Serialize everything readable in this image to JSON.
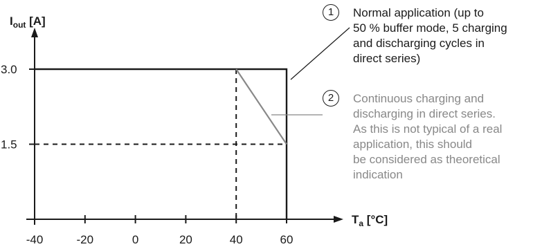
{
  "chart_data": {
    "type": "line",
    "title": "",
    "ylabel": {
      "base": "I",
      "sub": "out",
      "unit": " [A]"
    },
    "xlabel": {
      "base": "T",
      "sub": "a",
      "unit": " [°C]"
    },
    "xlim": [
      -40,
      60
    ],
    "ylim": [
      0,
      3.0
    ],
    "x_ticks": [
      -40,
      -20,
      0,
      20,
      40,
      60
    ],
    "x_tick_labels": [
      "-40",
      "-20",
      "0",
      "20",
      "40",
      "60"
    ],
    "y_ticks": [
      1.5,
      3.0
    ],
    "y_tick_labels": [
      "1.5",
      "3.0"
    ],
    "grid": false,
    "series": [
      {
        "name": "①",
        "color": "#1a1a1a",
        "style": "solid",
        "points": [
          [
            -40,
            3.0
          ],
          [
            60,
            3.0
          ],
          [
            60,
            0
          ]
        ]
      },
      {
        "name": "②",
        "color": "#888888",
        "style": "solid",
        "points": [
          [
            40,
            3.0
          ],
          [
            60,
            1.5
          ]
        ]
      }
    ],
    "guides": [
      {
        "style": "dashed",
        "points": [
          [
            40,
            3.0
          ],
          [
            40,
            0
          ]
        ]
      },
      {
        "style": "dashed",
        "points": [
          [
            -40,
            1.5
          ],
          [
            60,
            1.5
          ]
        ]
      }
    ],
    "annotations": [
      {
        "number": "1",
        "color": "#1a1a1a",
        "lines": [
          "Normal application (up to",
          "50 % buffer mode, 5 charging",
          "and discharging cycles in",
          "direct series)"
        ]
      },
      {
        "number": "2",
        "color": "#888888",
        "lines": [
          "Continuous charging and",
          "discharging in direct series.",
          "As this is not typical of a real",
          "application, this should",
          "be considered as theoretical",
          "indication"
        ]
      }
    ]
  }
}
